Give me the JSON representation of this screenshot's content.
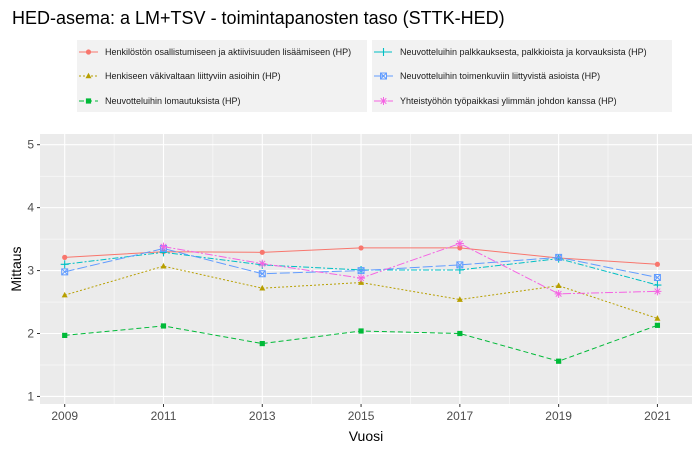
{
  "chart_data": {
    "type": "line",
    "title": "HED-asema: a LM+TSV  - toimintapanosten taso (STTK-HED)",
    "xlabel": "Vuosi",
    "ylabel": "Mittaus",
    "x": [
      2009,
      2011,
      2013,
      2015,
      2017,
      2019,
      2021
    ],
    "xlim": [
      2008.5,
      2021.7
    ],
    "ylim": [
      0.88,
      5.17
    ],
    "yticks": [
      1,
      2,
      3,
      4,
      5
    ],
    "grid": true,
    "legend_position": "top",
    "series": [
      {
        "name": "Henkilöstön osallistumiseen ja aktiivisuuden lisäämiseen (HP)",
        "color": "#F8766D",
        "marker": "circle",
        "dash": "",
        "values": [
          3.21,
          3.3,
          3.29,
          3.36,
          3.36,
          3.2,
          3.1
        ]
      },
      {
        "name": "Henkiseen väkivaltaan liittyviin asioihin (HP)",
        "color": "#B79F00",
        "marker": "triangle",
        "dash": "2,2",
        "values": [
          2.61,
          3.07,
          2.72,
          2.81,
          2.54,
          2.76,
          2.24
        ]
      },
      {
        "name": "Neuvotteluihin lomautuksista (HP)",
        "color": "#00BA38",
        "marker": "square",
        "dash": "5,3",
        "values": [
          1.97,
          2.12,
          1.84,
          2.04,
          2.0,
          1.56,
          2.13
        ]
      },
      {
        "name": "Neuvotteluihin palkkauksesta, palkkioista ja korvauksista (HP)",
        "color": "#00BFC4",
        "marker": "plus",
        "dash": "6,2,2,2",
        "values": [
          3.1,
          3.29,
          3.09,
          3.01,
          3.01,
          3.19,
          2.77
        ]
      },
      {
        "name": "Neuvotteluihin toimenkuviin liittyvistä asioista (HP)",
        "color": "#619CFF",
        "marker": "squarex",
        "dash": "10,3",
        "values": [
          2.98,
          3.35,
          2.95,
          3.0,
          3.09,
          3.21,
          2.89
        ]
      },
      {
        "name": "Yhteistyöhön työpaikkasi ylimmän johdon kanssa (HP)",
        "color": "#F564E3",
        "marker": "asterisk",
        "dash": "8,2,2,2",
        "values": [
          null,
          3.38,
          3.11,
          2.88,
          3.43,
          2.63,
          2.67
        ]
      }
    ]
  }
}
